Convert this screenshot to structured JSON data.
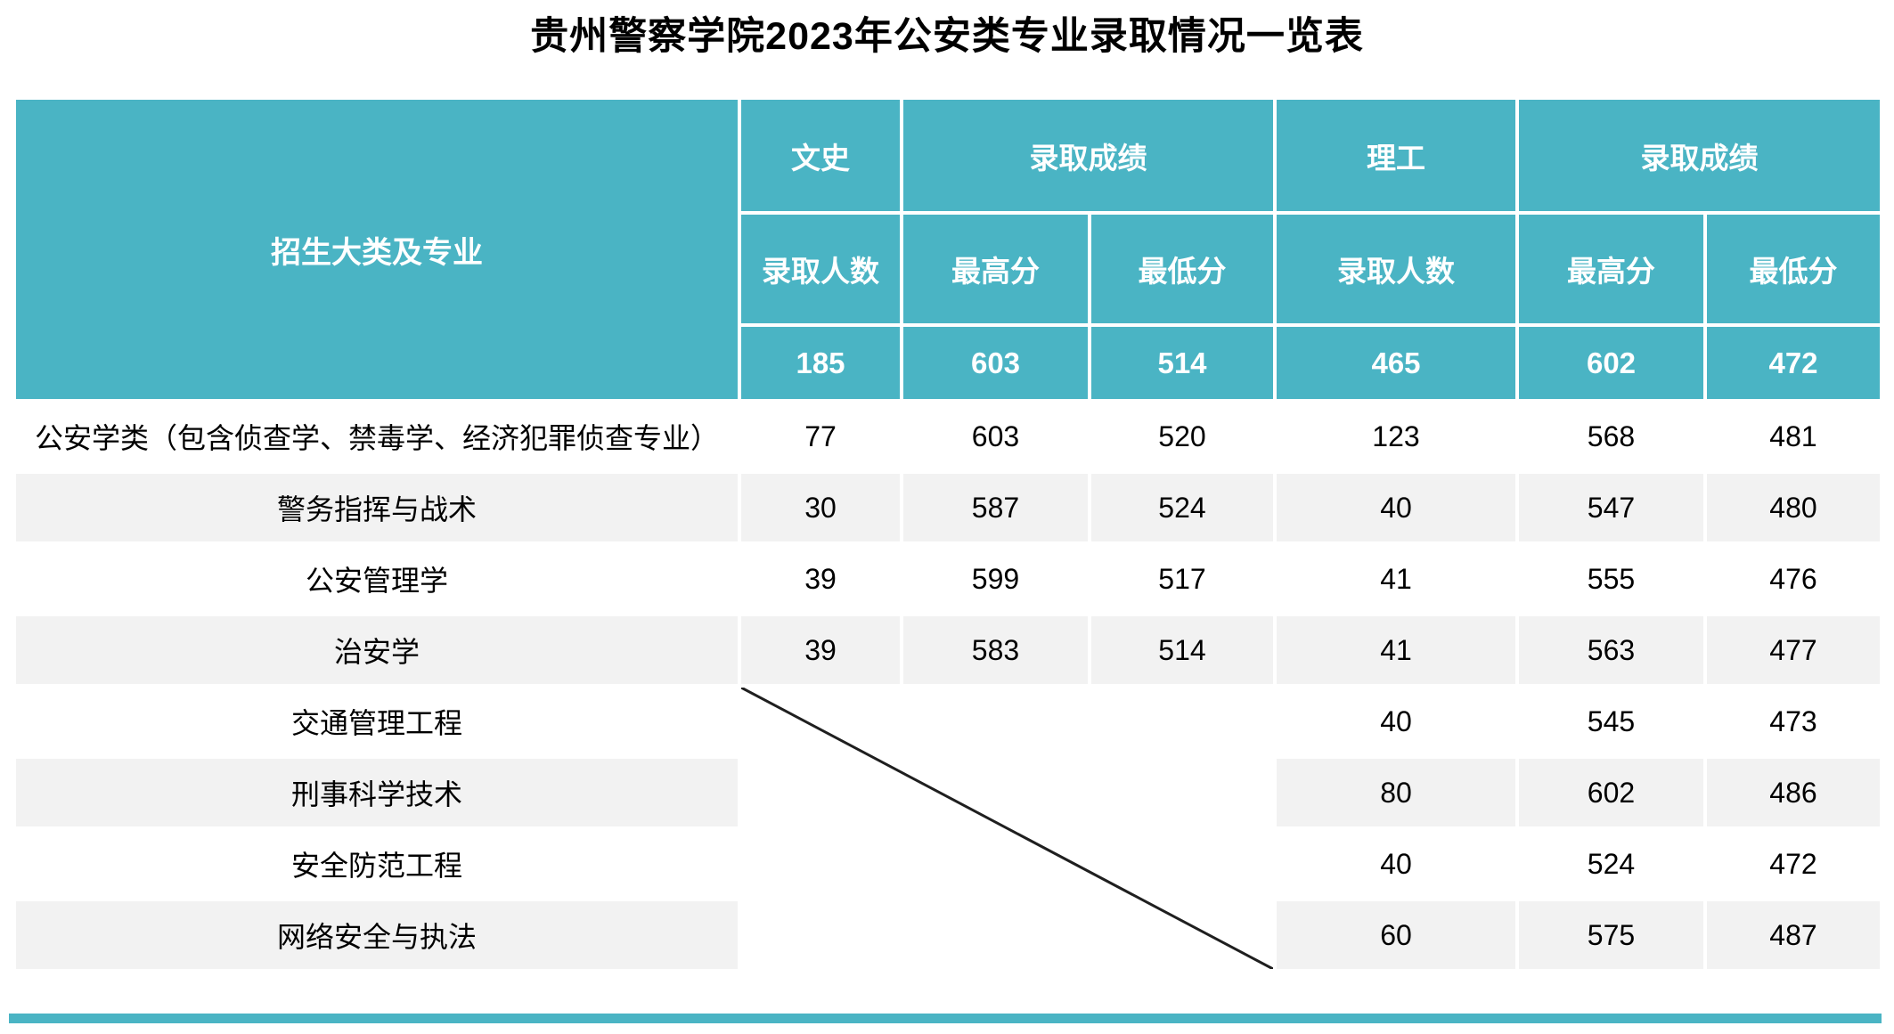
{
  "title": "贵州警察学院2023年公安类专业录取情况一览表",
  "colors": {
    "header_teal": "#4ab4c4",
    "stripe_gray": "#f2f2f2",
    "diagonal_line": "#1f1f1f"
  },
  "table": {
    "corner_header": "招生大类及专业",
    "group_headers": [
      "文史",
      "录取成绩",
      "理工",
      "录取成绩"
    ],
    "sub_headers": [
      "录取人数",
      "最高分",
      "最低分",
      "录取人数",
      "最高分",
      "最低分"
    ],
    "totals": [
      "185",
      "603",
      "514",
      "465",
      "602",
      "472"
    ],
    "rows": [
      {
        "major": "公安学类（包含侦查学、禁毒学、经济犯罪侦查专业）",
        "values": [
          "77",
          "603",
          "520",
          "123",
          "568",
          "481"
        ]
      },
      {
        "major": "警务指挥与战术",
        "values": [
          "30",
          "587",
          "524",
          "40",
          "547",
          "480"
        ]
      },
      {
        "major": "公安管理学",
        "values": [
          "39",
          "599",
          "517",
          "41",
          "555",
          "476"
        ]
      },
      {
        "major": "治安学",
        "values": [
          "39",
          "583",
          "514",
          "41",
          "563",
          "477"
        ]
      },
      {
        "major": "交通管理工程",
        "values": [
          "40",
          "545",
          "473"
        ]
      },
      {
        "major": "刑事科学技术",
        "values": [
          "80",
          "602",
          "486"
        ]
      },
      {
        "major": "安全防范工程",
        "values": [
          "40",
          "524",
          "472"
        ]
      },
      {
        "major": "网络安全与执法",
        "values": [
          "60",
          "575",
          "487"
        ]
      }
    ]
  }
}
